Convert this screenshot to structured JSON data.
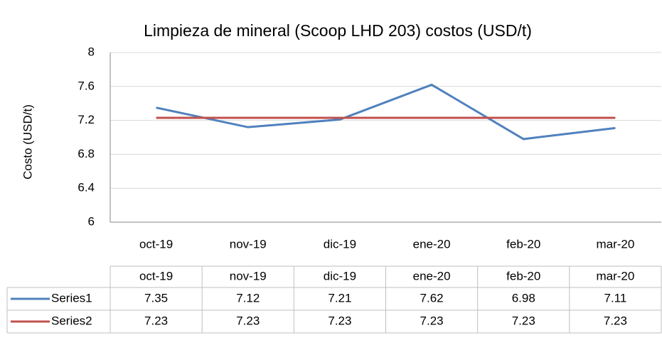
{
  "chart_data": {
    "type": "line",
    "title": "Limpieza de mineral (Scoop LHD 203) costos (USD/t)",
    "y_label": "Costo (USD/t)",
    "categories": [
      "oct-19",
      "nov-19",
      "dic-19",
      "ene-20",
      "feb-20",
      "mar-20"
    ],
    "series": [
      {
        "name": "Series1",
        "color": "#4f81bd",
        "values": [
          7.35,
          7.12,
          7.21,
          7.62,
          6.98,
          7.11
        ]
      },
      {
        "name": "Series2",
        "color": "#c0504d",
        "values": [
          7.23,
          7.23,
          7.23,
          7.23,
          7.23,
          7.23
        ]
      }
    ],
    "ylim": [
      6,
      8
    ],
    "yticks": [
      6,
      6.4,
      6.8,
      7.2,
      7.6,
      8
    ],
    "grid": true,
    "data_table": true
  }
}
